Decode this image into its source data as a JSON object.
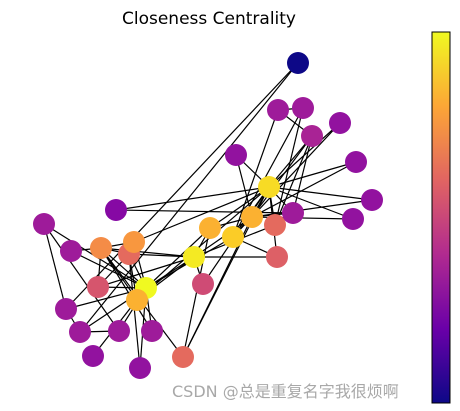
{
  "chart_data": {
    "type": "network",
    "title": "Closeness Centrality",
    "colormap": "plasma",
    "colorbar": {
      "stops": [
        "#0d0887",
        "#6a00a8",
        "#b12a90",
        "#e16462",
        "#fca636",
        "#f0f921"
      ]
    },
    "nodes": [
      {
        "id": 0,
        "value": 0.57
      },
      {
        "id": 1,
        "value": 0.49
      },
      {
        "id": 2,
        "value": 0.56
      },
      {
        "id": 3,
        "value": 0.46
      },
      {
        "id": 4,
        "value": 0.38
      },
      {
        "id": 5,
        "value": 0.38
      },
      {
        "id": 6,
        "value": 0.38
      },
      {
        "id": 7,
        "value": 0.44
      },
      {
        "id": 8,
        "value": 0.52
      },
      {
        "id": 9,
        "value": 0.43
      },
      {
        "id": 10,
        "value": 0.38
      },
      {
        "id": 11,
        "value": 0.37
      },
      {
        "id": 12,
        "value": 0.37
      },
      {
        "id": 13,
        "value": 0.52
      },
      {
        "id": 14,
        "value": 0.37
      },
      {
        "id": 15,
        "value": 0.37
      },
      {
        "id": 16,
        "value": 0.28
      },
      {
        "id": 17,
        "value": 0.38
      },
      {
        "id": 18,
        "value": 0.37
      },
      {
        "id": 19,
        "value": 0.5
      },
      {
        "id": 20,
        "value": 0.37
      },
      {
        "id": 21,
        "value": 0.38
      },
      {
        "id": 22,
        "value": 0.37
      },
      {
        "id": 23,
        "value": 0.39
      },
      {
        "id": 24,
        "value": 0.38
      },
      {
        "id": 25,
        "value": 0.38
      },
      {
        "id": 26,
        "value": 0.36
      },
      {
        "id": 27,
        "value": 0.46
      },
      {
        "id": 28,
        "value": 0.45
      },
      {
        "id": 29,
        "value": 0.38
      },
      {
        "id": 30,
        "value": 0.46
      },
      {
        "id": 31,
        "value": 0.54
      },
      {
        "id": 32,
        "value": 0.52
      },
      {
        "id": 33,
        "value": 0.55
      }
    ],
    "edges": [
      [
        0,
        1
      ],
      [
        0,
        2
      ],
      [
        0,
        3
      ],
      [
        0,
        4
      ],
      [
        0,
        5
      ],
      [
        0,
        6
      ],
      [
        0,
        7
      ],
      [
        0,
        8
      ],
      [
        0,
        10
      ],
      [
        0,
        11
      ],
      [
        0,
        12
      ],
      [
        0,
        13
      ],
      [
        0,
        17
      ],
      [
        0,
        19
      ],
      [
        0,
        21
      ],
      [
        0,
        31
      ],
      [
        1,
        2
      ],
      [
        1,
        3
      ],
      [
        1,
        7
      ],
      [
        1,
        13
      ],
      [
        1,
        17
      ],
      [
        1,
        19
      ],
      [
        1,
        21
      ],
      [
        1,
        30
      ],
      [
        2,
        3
      ],
      [
        2,
        7
      ],
      [
        2,
        8
      ],
      [
        2,
        9
      ],
      [
        2,
        13
      ],
      [
        2,
        27
      ],
      [
        2,
        28
      ],
      [
        2,
        32
      ],
      [
        3,
        7
      ],
      [
        3,
        12
      ],
      [
        3,
        13
      ],
      [
        4,
        6
      ],
      [
        4,
        10
      ],
      [
        5,
        6
      ],
      [
        5,
        10
      ],
      [
        5,
        16
      ],
      [
        6,
        16
      ],
      [
        8,
        30
      ],
      [
        8,
        32
      ],
      [
        8,
        33
      ],
      [
        9,
        33
      ],
      [
        13,
        33
      ],
      [
        14,
        32
      ],
      [
        14,
        33
      ],
      [
        15,
        32
      ],
      [
        15,
        33
      ],
      [
        18,
        32
      ],
      [
        18,
        33
      ],
      [
        19,
        33
      ],
      [
        20,
        32
      ],
      [
        20,
        33
      ],
      [
        22,
        32
      ],
      [
        22,
        33
      ],
      [
        23,
        25
      ],
      [
        23,
        27
      ],
      [
        23,
        29
      ],
      [
        23,
        32
      ],
      [
        23,
        33
      ],
      [
        24,
        25
      ],
      [
        24,
        27
      ],
      [
        24,
        31
      ],
      [
        25,
        31
      ],
      [
        26,
        29
      ],
      [
        26,
        33
      ],
      [
        27,
        33
      ],
      [
        28,
        31
      ],
      [
        28,
        33
      ],
      [
        29,
        32
      ],
      [
        29,
        33
      ],
      [
        30,
        32
      ],
      [
        30,
        33
      ],
      [
        31,
        32
      ],
      [
        31,
        33
      ],
      [
        32,
        33
      ]
    ]
  }
}
